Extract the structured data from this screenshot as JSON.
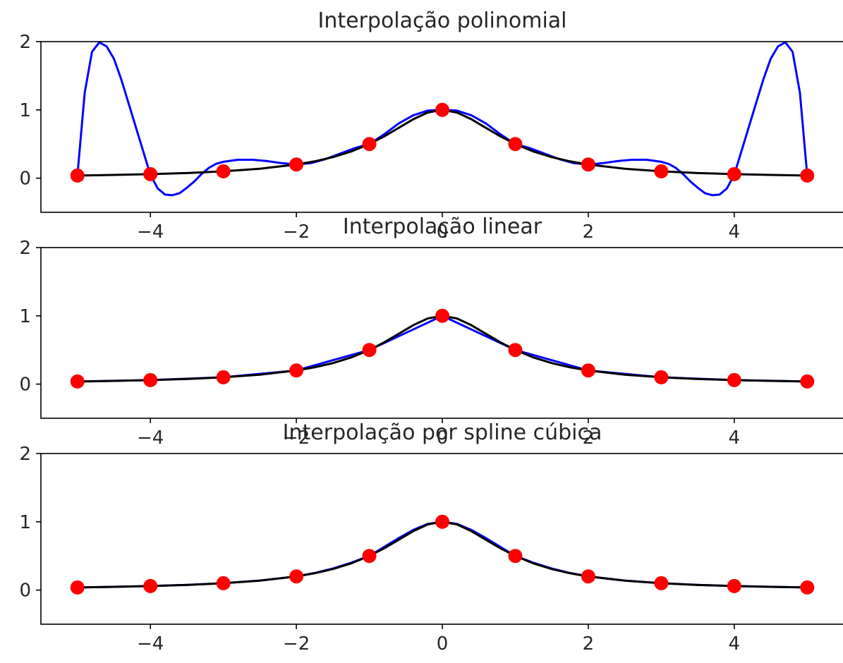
{
  "chart_data": [
    {
      "type": "line",
      "title": "Interpolação polinomial",
      "xlim": [
        -5.5,
        5.5
      ],
      "ylim": [
        -0.5,
        2.0
      ],
      "xticks": [
        -4,
        -2,
        0,
        2,
        4
      ],
      "yticks": [
        0,
        1,
        2
      ],
      "xtick_labels": [
        "−4",
        "−2",
        "0",
        "2",
        "4"
      ],
      "ytick_labels": [
        "0",
        "1",
        "2"
      ],
      "grid": false,
      "points": {
        "x": [
          -5,
          -4,
          -3,
          -2,
          -1,
          0,
          1,
          2,
          3,
          4,
          5
        ],
        "y": [
          0.038,
          0.059,
          0.1,
          0.2,
          0.5,
          1.0,
          0.5,
          0.2,
          0.1,
          0.059,
          0.038
        ],
        "color": "#ff0000"
      },
      "series": [
        {
          "color": "#0000ff",
          "x": [
            -5.0,
            -4.9,
            -4.8,
            -4.7,
            -4.6,
            -4.5,
            -4.4,
            -4.3,
            -4.2,
            -4.1,
            -4.0,
            -3.9,
            -3.8,
            -3.7,
            -3.6,
            -3.5,
            -3.4,
            -3.3,
            -3.2,
            -3.1,
            -3.0,
            -2.8,
            -2.6,
            -2.4,
            -2.2,
            -2.0,
            -1.8,
            -1.6,
            -1.4,
            -1.2,
            -1.0,
            -0.8,
            -0.6,
            -0.4,
            -0.2,
            0.0,
            0.2,
            0.4,
            0.6,
            0.8,
            1.0,
            1.2,
            1.4,
            1.6,
            1.8,
            2.0,
            2.2,
            2.4,
            2.6,
            2.8,
            3.0,
            3.1,
            3.2,
            3.3,
            3.4,
            3.5,
            3.6,
            3.7,
            3.8,
            3.9,
            4.0,
            4.1,
            4.2,
            4.3,
            4.4,
            4.5,
            4.6,
            4.7,
            4.8,
            4.9,
            5.0
          ],
          "y": [
            0.04,
            1.25,
            1.85,
            1.99,
            1.93,
            1.75,
            1.45,
            1.1,
            0.75,
            0.4,
            0.05,
            -0.15,
            -0.24,
            -0.25,
            -0.22,
            -0.14,
            -0.05,
            0.06,
            0.15,
            0.21,
            0.24,
            0.27,
            0.27,
            0.25,
            0.22,
            0.2,
            0.22,
            0.28,
            0.36,
            0.44,
            0.5,
            0.64,
            0.8,
            0.92,
            0.99,
            1.0,
            0.99,
            0.92,
            0.8,
            0.64,
            0.5,
            0.44,
            0.36,
            0.28,
            0.22,
            0.2,
            0.22,
            0.25,
            0.27,
            0.27,
            0.24,
            0.21,
            0.15,
            0.06,
            -0.05,
            -0.14,
            -0.22,
            -0.25,
            -0.24,
            -0.15,
            0.05,
            0.4,
            0.75,
            1.1,
            1.45,
            1.75,
            1.93,
            1.99,
            1.85,
            1.25,
            0.04
          ]
        },
        {
          "color": "#000000",
          "function": "1/(1+x^2)",
          "x": [
            -5,
            -4.5,
            -4,
            -3.5,
            -3,
            -2.5,
            -2,
            -1.75,
            -1.5,
            -1.25,
            -1,
            -0.8,
            -0.6,
            -0.4,
            -0.2,
            0,
            0.2,
            0.4,
            0.6,
            0.8,
            1,
            1.25,
            1.5,
            1.75,
            2,
            2.5,
            3,
            3.5,
            4,
            4.5,
            5
          ],
          "y": [
            0.038,
            0.047,
            0.059,
            0.075,
            0.1,
            0.138,
            0.2,
            0.246,
            0.308,
            0.39,
            0.5,
            0.61,
            0.735,
            0.862,
            0.962,
            1.0,
            0.962,
            0.862,
            0.735,
            0.61,
            0.5,
            0.39,
            0.308,
            0.246,
            0.2,
            0.138,
            0.1,
            0.075,
            0.059,
            0.047,
            0.038
          ]
        }
      ]
    },
    {
      "type": "line",
      "title": "Interpolação linear",
      "xlim": [
        -5.5,
        5.5
      ],
      "ylim": [
        -0.5,
        2.0
      ],
      "xticks": [
        -4,
        -2,
        0,
        2,
        4
      ],
      "yticks": [
        0,
        1,
        2
      ],
      "xtick_labels": [
        "−4",
        "−2",
        "0",
        "2",
        "4"
      ],
      "ytick_labels": [
        "0",
        "1",
        "2"
      ],
      "grid": false,
      "points": {
        "x": [
          -5,
          -4,
          -3,
          -2,
          -1,
          0,
          1,
          2,
          3,
          4,
          5
        ],
        "y": [
          0.038,
          0.059,
          0.1,
          0.2,
          0.5,
          1.0,
          0.5,
          0.2,
          0.1,
          0.059,
          0.038
        ],
        "color": "#ff0000"
      },
      "series": [
        {
          "color": "#0000ff",
          "x": [
            -5,
            -4,
            -3,
            -2,
            -1,
            0,
            1,
            2,
            3,
            4,
            5
          ],
          "y": [
            0.038,
            0.059,
            0.1,
            0.2,
            0.5,
            1.0,
            0.5,
            0.2,
            0.1,
            0.059,
            0.038
          ]
        },
        {
          "color": "#000000",
          "function": "1/(1+x^2)",
          "x": [
            -5,
            -4.5,
            -4,
            -3.5,
            -3,
            -2.5,
            -2,
            -1.75,
            -1.5,
            -1.25,
            -1,
            -0.8,
            -0.6,
            -0.4,
            -0.2,
            0,
            0.2,
            0.4,
            0.6,
            0.8,
            1,
            1.25,
            1.5,
            1.75,
            2,
            2.5,
            3,
            3.5,
            4,
            4.5,
            5
          ],
          "y": [
            0.038,
            0.047,
            0.059,
            0.075,
            0.1,
            0.138,
            0.2,
            0.246,
            0.308,
            0.39,
            0.5,
            0.61,
            0.735,
            0.862,
            0.962,
            1.0,
            0.962,
            0.862,
            0.735,
            0.61,
            0.5,
            0.39,
            0.308,
            0.246,
            0.2,
            0.138,
            0.1,
            0.075,
            0.059,
            0.047,
            0.038
          ]
        }
      ]
    },
    {
      "type": "line",
      "title": "Interpolação por spline cúbica",
      "xlim": [
        -5.5,
        5.5
      ],
      "ylim": [
        -0.5,
        2.0
      ],
      "xticks": [
        -4,
        -2,
        0,
        2,
        4
      ],
      "yticks": [
        0,
        1,
        2
      ],
      "xtick_labels": [
        "−4",
        "−2",
        "0",
        "2",
        "4"
      ],
      "ytick_labels": [
        "0",
        "1",
        "2"
      ],
      "grid": false,
      "points": {
        "x": [
          -5,
          -4,
          -3,
          -2,
          -1,
          0,
          1,
          2,
          3,
          4,
          5
        ],
        "y": [
          0.038,
          0.059,
          0.1,
          0.2,
          0.5,
          1.0,
          0.5,
          0.2,
          0.1,
          0.059,
          0.038
        ],
        "color": "#ff0000"
      },
      "series": [
        {
          "color": "#0000ff",
          "x": [
            -5,
            -4.5,
            -4,
            -3.5,
            -3,
            -2.5,
            -2,
            -1.75,
            -1.5,
            -1.25,
            -1,
            -0.8,
            -0.6,
            -0.4,
            -0.2,
            0,
            0.2,
            0.4,
            0.6,
            0.8,
            1,
            1.25,
            1.5,
            1.75,
            2,
            2.5,
            3,
            3.5,
            4,
            4.5,
            5
          ],
          "y": [
            0.038,
            0.048,
            0.059,
            0.076,
            0.1,
            0.139,
            0.2,
            0.25,
            0.315,
            0.4,
            0.5,
            0.63,
            0.76,
            0.88,
            0.97,
            1.0,
            0.97,
            0.88,
            0.76,
            0.63,
            0.5,
            0.4,
            0.315,
            0.25,
            0.2,
            0.139,
            0.1,
            0.076,
            0.059,
            0.048,
            0.038
          ]
        },
        {
          "color": "#000000",
          "function": "1/(1+x^2)",
          "x": [
            -5,
            -4.5,
            -4,
            -3.5,
            -3,
            -2.5,
            -2,
            -1.75,
            -1.5,
            -1.25,
            -1,
            -0.8,
            -0.6,
            -0.4,
            -0.2,
            0,
            0.2,
            0.4,
            0.6,
            0.8,
            1,
            1.25,
            1.5,
            1.75,
            2,
            2.5,
            3,
            3.5,
            4,
            4.5,
            5
          ],
          "y": [
            0.038,
            0.047,
            0.059,
            0.075,
            0.1,
            0.138,
            0.2,
            0.246,
            0.308,
            0.39,
            0.5,
            0.61,
            0.735,
            0.862,
            0.962,
            1.0,
            0.962,
            0.862,
            0.735,
            0.61,
            0.5,
            0.39,
            0.308,
            0.246,
            0.2,
            0.138,
            0.1,
            0.075,
            0.059,
            0.047,
            0.038
          ]
        }
      ]
    }
  ]
}
